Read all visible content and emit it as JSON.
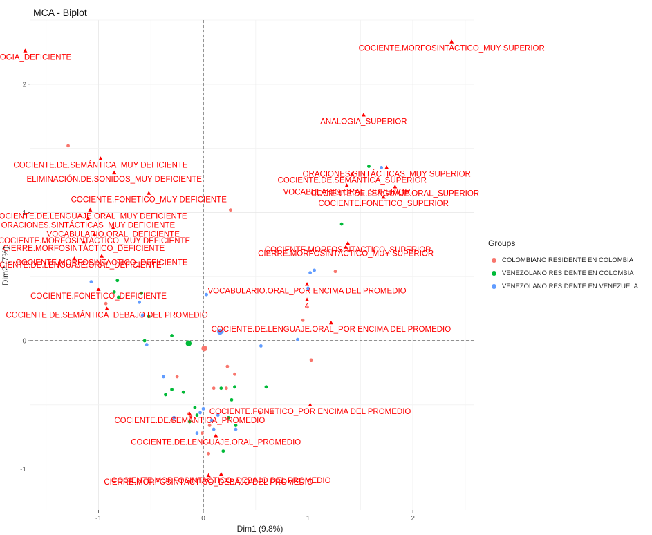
{
  "chart_data": {
    "type": "scatter",
    "title": "MCA - Biplot",
    "xlabel": "Dim1 (9.8%)",
    "ylabel": "Dim2 (7%)",
    "xlim": [
      -1.65,
      2.58
    ],
    "ylim": [
      -1.32,
      2.5
    ],
    "x_ticks": [
      -1,
      0,
      1,
      2
    ],
    "y_ticks": [
      -1,
      0,
      1,
      2
    ],
    "x_tick_labels": [
      "-1",
      "0",
      "1",
      "2"
    ],
    "y_tick_labels": [
      "-1",
      "0",
      "1",
      "2"
    ],
    "grid": true,
    "legend_position": "right",
    "legend_title": "Groups",
    "groups": [
      {
        "name": "COLOMBIANO RESIDENTE EN COLOMBIA",
        "color": "#F8766D",
        "points": [
          [
            -1.29,
            1.52
          ],
          [
            0.26,
            1.02
          ],
          [
            -0.93,
            0.6
          ],
          [
            1.26,
            0.54
          ],
          [
            -0.93,
            0.29
          ],
          [
            0.95,
            0.16
          ],
          [
            0.02,
            -0.06
          ],
          [
            -0.25,
            -0.28
          ],
          [
            0.22,
            -0.37
          ],
          [
            0.23,
            -0.2
          ],
          [
            0.3,
            -0.26
          ],
          [
            0.1,
            -0.37
          ],
          [
            -0.19,
            -0.4
          ],
          [
            -0.12,
            -0.59
          ],
          [
            -0.14,
            -0.57
          ],
          [
            0.06,
            -0.66
          ],
          [
            0.54,
            -0.56
          ],
          [
            0.66,
            -0.55
          ],
          [
            1.03,
            -0.15
          ],
          [
            -0.3,
            -0.62
          ],
          [
            0.05,
            -0.88
          ],
          [
            -0.01,
            -0.72
          ]
        ]
      },
      {
        "name": "VENEZOLANO RESIDENTE EN COLOMBIA",
        "color": "#00BA38",
        "points": [
          [
            1.58,
            1.36
          ],
          [
            1.32,
            0.91
          ],
          [
            -0.82,
            0.47
          ],
          [
            -0.85,
            0.38
          ],
          [
            -0.59,
            0.37
          ],
          [
            -0.81,
            0.34
          ],
          [
            -0.52,
            0.19
          ],
          [
            -0.3,
            0.04
          ],
          [
            -0.56,
            0.0
          ],
          [
            -0.15,
            -0.02
          ],
          [
            -0.36,
            -0.42
          ],
          [
            -0.3,
            -0.38
          ],
          [
            -0.19,
            -0.4
          ],
          [
            0.17,
            -0.37
          ],
          [
            0.3,
            -0.36
          ],
          [
            0.6,
            -0.36
          ],
          [
            0.27,
            -0.46
          ],
          [
            0.24,
            -0.6
          ],
          [
            -0.08,
            -0.52
          ],
          [
            -0.06,
            -0.58
          ],
          [
            0.31,
            -0.66
          ],
          [
            0.19,
            -0.86
          ],
          [
            -0.13,
            -0.63
          ]
        ]
      },
      {
        "name": "VENEZOLANO RESIDENTE EN VENEZUELA",
        "color": "#619CFF",
        "points": [
          [
            1.7,
            1.35
          ],
          [
            1.02,
            0.53
          ],
          [
            1.06,
            0.55
          ],
          [
            -1.07,
            0.46
          ],
          [
            0.03,
            0.36
          ],
          [
            1.0,
            0.41
          ],
          [
            -0.58,
            0.2
          ],
          [
            -0.61,
            0.3
          ],
          [
            0.18,
            0.07
          ],
          [
            0.9,
            0.01
          ],
          [
            0.55,
            -0.04
          ],
          [
            -0.54,
            -0.03
          ],
          [
            -0.38,
            -0.28
          ],
          [
            0.0,
            -0.53
          ],
          [
            -0.03,
            -0.56
          ],
          [
            0.08,
            -0.62
          ],
          [
            0.14,
            -0.58
          ],
          [
            0.31,
            -0.69
          ],
          [
            0.1,
            -0.69
          ],
          [
            -0.06,
            -0.72
          ],
          [
            -0.28,
            -0.6
          ]
        ]
      }
    ],
    "group_centroids": [
      {
        "group": "COLOMBIANO RESIDENTE EN COLOMBIA",
        "x": 0.01,
        "y": -0.06
      },
      {
        "group": "VENEZOLANO RESIDENTE EN COLOMBIA",
        "x": -0.14,
        "y": -0.02
      },
      {
        "group": "VENEZOLANO RESIDENTE EN VENEZUELA",
        "x": 0.16,
        "y": 0.07
      }
    ],
    "variables": [
      {
        "label": "COCIENTE.MORFOSINTACTICO_MUY SUPERIOR",
        "x": 2.37,
        "y": 2.33
      },
      {
        "label": "ANALOGIA_DEFICIENTE",
        "x": -1.7,
        "y": 2.26
      },
      {
        "label": "ANALOGIA_SUPERIOR",
        "x": 1.53,
        "y": 1.76
      },
      {
        "label": "ORACIONES.SINTÁCTICAS_MUY SUPERIOR",
        "x": 1.75,
        "y": 1.35
      },
      {
        "label": "COCIENTE.DE.SEMÁNTICA_MUY DEFICIENTE",
        "x": -0.98,
        "y": 1.42
      },
      {
        "label": "ELIMINACIÓN.DE.SONIDOS_MUY DEFICIENTE",
        "x": -0.85,
        "y": 1.31
      },
      {
        "label": "COCIENTE.DE.SEMÁNTICA_SUPERIOR",
        "x": 1.42,
        "y": 1.3
      },
      {
        "label": "VOCABULARIO.ORAL_SUPERIOR",
        "x": 1.37,
        "y": 1.21
      },
      {
        "label": "COCIENTE.DE.LENGUAJE.ORAL_SUPERIOR",
        "x": 1.83,
        "y": 1.2
      },
      {
        "label": "COCIENTE.FONETICO_MUY DEFICIENTE",
        "x": -0.52,
        "y": 1.15
      },
      {
        "label": "COCIENTE.FONETICO_SUPERIOR",
        "x": 1.72,
        "y": 1.12
      },
      {
        "label": "COCIENTE.DE.LENGUAJE.ORAL_MUY DEFICIENTE",
        "x": -1.08,
        "y": 1.02
      },
      {
        "label": "ORACIONES.SINTÁCTICAS_MUY DEFICIENTE",
        "x": -1.1,
        "y": 0.95
      },
      {
        "label": "VOCABULARIO.ORAL_DEFICIENTE",
        "x": -0.86,
        "y": 0.88
      },
      {
        "label": "COCIENTE.MORFOSINTACTICO_MUY DEFICIENTE",
        "x": -1.04,
        "y": 0.83
      },
      {
        "label": "COCIENTE.MORFOSINTACTICO_SUPERIOR",
        "x": 1.38,
        "y": 0.76
      },
      {
        "label": "CIERRE.MORFOSINTÁCTICO_DEFICIENTE",
        "x": -1.14,
        "y": 0.77
      },
      {
        "label": "CIERRE.MORFOSINTÁCTICO_MUY SUPERIOR",
        "x": 1.36,
        "y": 0.73
      },
      {
        "label": "COCIENTE.MORFOSINTACTICO_DEFICIENTE",
        "x": -0.97,
        "y": 0.66
      },
      {
        "label": "COCIENTE.DE.LENGUAJE.ORAL_DEFICIENTE",
        "x": -1.23,
        "y": 0.64
      },
      {
        "label": "COCIENTE.FONETICO_DEFICIENTE",
        "x": -1.0,
        "y": 0.4
      },
      {
        "label": "VOCABULARIO.ORAL_POR ENCIMA DEL PROMEDIO",
        "x": 0.99,
        "y": 0.44
      },
      {
        "label": "4",
        "x": 0.99,
        "y": 0.32
      },
      {
        "label": "COCIENTE.DE.SEMÁNTICA_DEBAJO DEL PROMEDIO",
        "x": -0.92,
        "y": 0.25
      },
      {
        "label": "COCIENTE.DE.LENGUAJE.ORAL_POR ENCIMA DEL PROMEDIO",
        "x": 1.22,
        "y": 0.14
      },
      {
        "label": "COCIENTE.FONETICO_POR ENCIMA DEL PROMEDIO",
        "x": 1.02,
        "y": -0.5
      },
      {
        "label": "COCIENTE.DE.SEMÁNTICA_PROMEDIO",
        "x": -0.13,
        "y": -0.57
      },
      {
        "label": "COCIENTE.DE.LENGUAJE.ORAL_PROMEDIO",
        "x": 0.12,
        "y": -0.74
      },
      {
        "label": "COCIENTE.MORFOSINTACTICO_DEBAJO DEL PROMEDIO",
        "x": 0.17,
        "y": -1.04
      },
      {
        "label": "CIERRE.MORFOSINTÁCTICO_DEBAJO DEL PROMEDIO",
        "x": 0.05,
        "y": -1.05
      }
    ]
  }
}
